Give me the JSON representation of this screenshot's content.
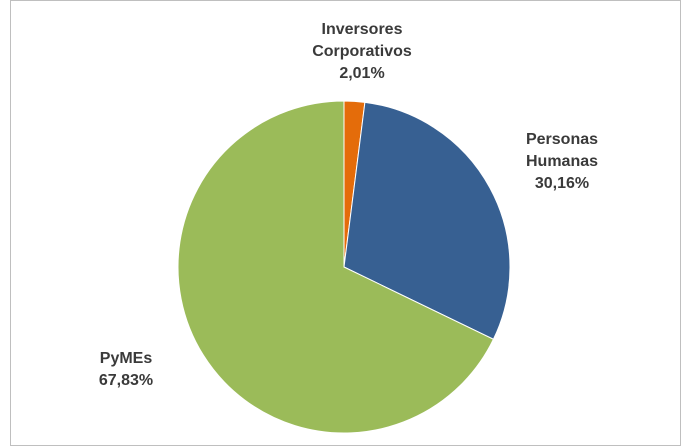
{
  "chart_data": {
    "type": "pie",
    "title": "",
    "slices": [
      {
        "label_lines": [
          "Inversores",
          "Corporativos"
        ],
        "value": 2.01,
        "value_label": "2,01%",
        "color": "#E46C0A"
      },
      {
        "label_lines": [
          "Personas",
          "Humanas"
        ],
        "value": 30.16,
        "value_label": "30,16%",
        "color": "#376092"
      },
      {
        "label_lines": [
          "PyMEs"
        ],
        "value": 67.83,
        "value_label": "67,83%",
        "color": "#9BBB59"
      }
    ],
    "start_angle": "12 o'clock",
    "direction": "clockwise",
    "legend": "none",
    "data_labels": "outside"
  }
}
